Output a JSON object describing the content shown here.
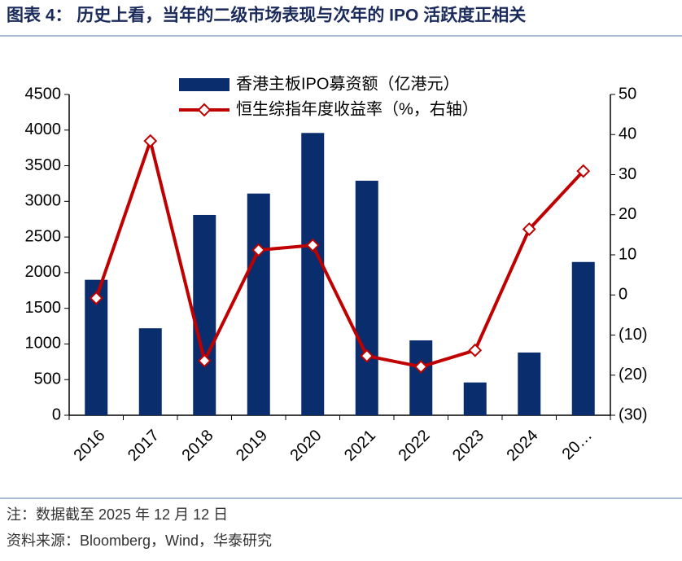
{
  "chart_data": {
    "type": "combo",
    "title": "图表 4：  历史上看，当年的二级市场表现与次年的 IPO 活跃度正相关",
    "note": "注：数据截至 2025 年 12 月 12 日",
    "source": "资料来源：Bloomberg，Wind，华泰研究",
    "categories": [
      "2016",
      "2017",
      "2018",
      "2019",
      "2020",
      "2021",
      "2022",
      "2023",
      "2024",
      "20…"
    ],
    "series": [
      {
        "name": "香港主板IPO募资额（亿港元）",
        "type": "bar",
        "color": "#0a2d6e",
        "values": [
          1900,
          1220,
          2810,
          3110,
          3960,
          3290,
          1050,
          460,
          880,
          2150
        ]
      },
      {
        "name": "恒生综指年度收益率（%，右轴）",
        "type": "line",
        "axis": "y2",
        "color": "#c00000",
        "values": [
          -0.8,
          38.4,
          -16.4,
          11.2,
          12.4,
          -15.2,
          -17.9,
          -13.8,
          16.4,
          30.9
        ]
      }
    ],
    "ylim": [
      0,
      4500
    ],
    "yticks": [
      0,
      500,
      1000,
      1500,
      2000,
      2500,
      3000,
      3500,
      4000,
      4500
    ],
    "y2lim": [
      -30,
      50
    ],
    "y2ticks": [
      {
        "value": -30,
        "label": "(30)"
      },
      {
        "value": -20,
        "label": "(20)"
      },
      {
        "value": -10,
        "label": "(10)"
      },
      0,
      10,
      20,
      30,
      40,
      50
    ],
    "legend": "top"
  }
}
